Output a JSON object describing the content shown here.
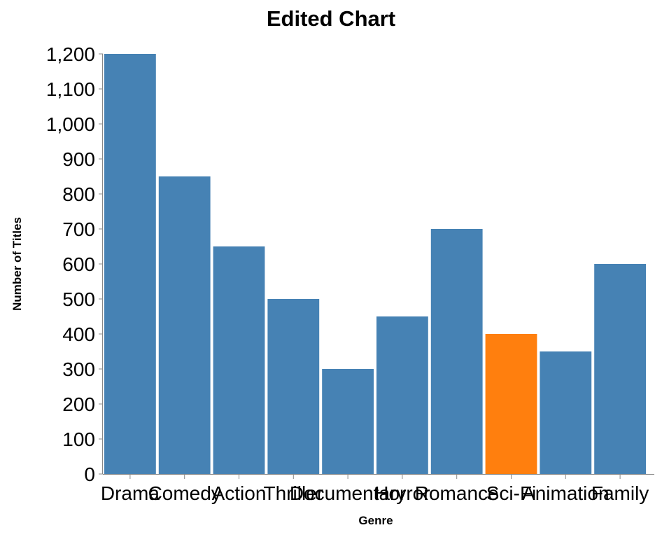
{
  "chart_data": {
    "type": "bar",
    "title": "Edited Chart",
    "xlabel": "Genre",
    "ylabel": "Number of Titles",
    "categories": [
      "Drama",
      "Comedy",
      "Action",
      "Thriller",
      "Documentary",
      "Horror",
      "Romance",
      "Sci-Fi",
      "Animation",
      "Family"
    ],
    "values": [
      1200,
      850,
      650,
      500,
      300,
      450,
      700,
      400,
      350,
      600
    ],
    "colors": [
      "#4682b4",
      "#4682b4",
      "#4682b4",
      "#4682b4",
      "#4682b4",
      "#4682b4",
      "#4682b4",
      "#ff7f0e",
      "#4682b4",
      "#4682b4"
    ],
    "ylim": [
      0,
      1200
    ],
    "yticks": [
      0,
      100,
      200,
      300,
      400,
      500,
      600,
      700,
      800,
      900,
      1000,
      1100,
      1200
    ],
    "ytick_labels": [
      "0",
      "100",
      "200",
      "300",
      "400",
      "500",
      "600",
      "700",
      "800",
      "900",
      "1,000",
      "1,100",
      "1,200"
    ],
    "grid": false,
    "legend": "none"
  }
}
